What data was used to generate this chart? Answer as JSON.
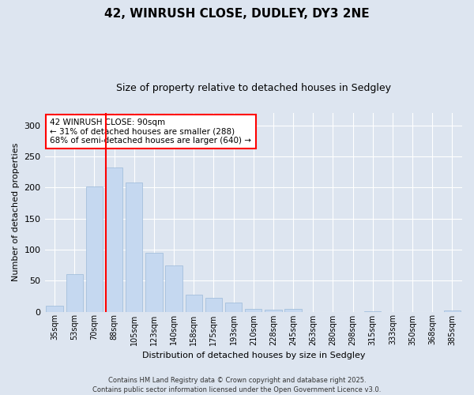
{
  "title1": "42, WINRUSH CLOSE, DUDLEY, DY3 2NE",
  "title2": "Size of property relative to detached houses in Sedgley",
  "xlabel": "Distribution of detached houses by size in Sedgley",
  "ylabel": "Number of detached properties",
  "categories": [
    "35sqm",
    "53sqm",
    "70sqm",
    "88sqm",
    "105sqm",
    "123sqm",
    "140sqm",
    "158sqm",
    "175sqm",
    "193sqm",
    "210sqm",
    "228sqm",
    "245sqm",
    "263sqm",
    "280sqm",
    "298sqm",
    "315sqm",
    "333sqm",
    "350sqm",
    "368sqm",
    "385sqm"
  ],
  "values": [
    9,
    60,
    201,
    232,
    208,
    95,
    75,
    27,
    22,
    15,
    4,
    3,
    4,
    0,
    0,
    0,
    1,
    0,
    0,
    0,
    2
  ],
  "bar_color": "#c5d8f0",
  "bar_edge_color": "#9bbad8",
  "vline_color": "red",
  "vline_x_index": 3,
  "annotation_text": "42 WINRUSH CLOSE: 90sqm\n← 31% of detached houses are smaller (288)\n68% of semi-detached houses are larger (640) →",
  "annotation_box_color": "white",
  "annotation_box_edge": "red",
  "ylim": [
    0,
    320
  ],
  "yticks": [
    0,
    50,
    100,
    150,
    200,
    250,
    300
  ],
  "background_color": "#dde5f0",
  "footer": "Contains HM Land Registry data © Crown copyright and database right 2025.\nContains public sector information licensed under the Open Government Licence v3.0."
}
